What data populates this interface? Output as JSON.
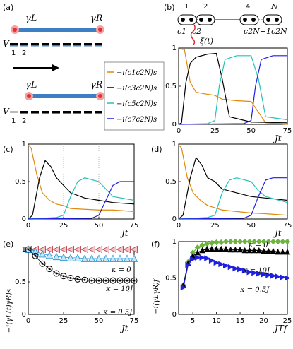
{
  "panels": {
    "a": {
      "label": "(a)",
      "gamma_L": "γL",
      "gamma_R": "γR",
      "V": "V",
      "site1": "1",
      "site2": "2"
    },
    "b": {
      "label": "(b)",
      "top_labels": [
        "1",
        "2",
        "4",
        "N"
      ],
      "bottom_labels": [
        "c1",
        "c2",
        "c2N−1c2N"
      ],
      "xi": "ξ(t)"
    },
    "c": {
      "label": "(c)"
    },
    "d": {
      "label": "(d)"
    },
    "e": {
      "label": "(e)",
      "ylabel": "−i⟨γL(t)γR⟩s",
      "xlabel": "Jt",
      "annotations": [
        "κ = 0",
        "κ = 10J",
        "κ = 0.5J"
      ]
    },
    "f": {
      "label": "(f)",
      "ylabel": "−i⟨γLγR⟩f",
      "xlabel": "JTf",
      "annotations": [
        "κ = 0",
        "κ = 10J",
        "κ = 0.5J"
      ]
    }
  },
  "legend": [
    {
      "text": "−i⟨c1c2N⟩s",
      "color": "#e08a0c"
    },
    {
      "text": "−i⟨c3c2N⟩s",
      "color": "#000000"
    },
    {
      "text": "−i⟨c5c2N⟩s",
      "color": "#22c3b8"
    },
    {
      "text": "−i⟨c7c2N⟩s",
      "color": "#1f1fe0"
    }
  ],
  "chart_data": [
    {
      "type": "line",
      "panel": "b",
      "xlabel": "Jt",
      "xlim": [
        0,
        75
      ],
      "ylim": [
        0,
        1
      ],
      "xticks": [
        "0",
        "25",
        "50",
        "75"
      ],
      "yticks": [
        "0",
        "0.5",
        "1"
      ],
      "series": [
        {
          "color": "#e08a0c",
          "x": [
            0,
            4,
            8,
            12,
            18,
            25,
            30,
            40,
            50,
            60,
            75
          ],
          "y": [
            0.99,
            0.98,
            0.55,
            0.42,
            0.4,
            0.38,
            0.33,
            0.31,
            0.3,
            0.02,
            0.0
          ]
        },
        {
          "color": "#000000",
          "x": [
            0,
            2,
            5,
            8,
            12,
            20,
            26,
            30,
            35,
            50,
            75
          ],
          "y": [
            0.0,
            0.02,
            0.55,
            0.8,
            0.88,
            0.92,
            0.93,
            0.6,
            0.1,
            0.03,
            0.02
          ]
        },
        {
          "color": "#22c3b8",
          "x": [
            0,
            20,
            25,
            28,
            32,
            40,
            50,
            55,
            60,
            75
          ],
          "y": [
            0.0,
            0.01,
            0.05,
            0.5,
            0.85,
            0.9,
            0.9,
            0.6,
            0.1,
            0.06
          ]
        },
        {
          "color": "#1f1fe0",
          "x": [
            0,
            45,
            50,
            53,
            57,
            65,
            75
          ],
          "y": [
            0.0,
            0.01,
            0.05,
            0.5,
            0.85,
            0.9,
            0.9
          ]
        }
      ]
    },
    {
      "type": "line",
      "panel": "c",
      "xlabel": "Jt",
      "xlim": [
        0,
        75
      ],
      "ylim": [
        0,
        1
      ],
      "xticks": [
        "0",
        "25",
        "50",
        "75"
      ],
      "yticks": [
        "0",
        "0.5",
        "1"
      ],
      "series": [
        {
          "color": "#e08a0c",
          "x": [
            0,
            2,
            6,
            10,
            15,
            20,
            25,
            30,
            40,
            50,
            60,
            75
          ],
          "y": [
            0.99,
            0.95,
            0.6,
            0.35,
            0.25,
            0.2,
            0.18,
            0.14,
            0.13,
            0.12,
            0.12,
            0.1
          ]
        },
        {
          "color": "#000000",
          "x": [
            0,
            3,
            8,
            12,
            16,
            20,
            25,
            30,
            40,
            50,
            60,
            75
          ],
          "y": [
            0.0,
            0.05,
            0.55,
            0.78,
            0.7,
            0.55,
            0.45,
            0.35,
            0.28,
            0.25,
            0.22,
            0.2
          ]
        },
        {
          "color": "#22c3b8",
          "x": [
            0,
            20,
            25,
            30,
            35,
            40,
            50,
            55,
            60,
            75
          ],
          "y": [
            0.0,
            0.02,
            0.05,
            0.3,
            0.5,
            0.55,
            0.5,
            0.4,
            0.3,
            0.25
          ]
        },
        {
          "color": "#1f1fe0",
          "x": [
            0,
            45,
            50,
            55,
            60,
            65,
            75
          ],
          "y": [
            0.0,
            0.01,
            0.05,
            0.25,
            0.45,
            0.5,
            0.5
          ]
        }
      ]
    },
    {
      "type": "line",
      "panel": "d",
      "xlabel": "Jt",
      "xlim": [
        0,
        75
      ],
      "ylim": [
        0,
        1
      ],
      "xticks": [
        "0",
        "25",
        "50",
        "75"
      ],
      "yticks": [
        "0",
        "0.5",
        "1"
      ],
      "series": [
        {
          "color": "#e08a0c",
          "x": [
            0,
            2,
            6,
            10,
            15,
            20,
            25,
            30,
            40,
            50,
            60,
            75
          ],
          "y": [
            0.99,
            0.95,
            0.55,
            0.35,
            0.25,
            0.18,
            0.15,
            0.12,
            0.1,
            0.08,
            0.07,
            0.05
          ]
        },
        {
          "color": "#000000",
          "x": [
            0,
            3,
            8,
            12,
            16,
            20,
            25,
            30,
            40,
            50,
            60,
            75
          ],
          "y": [
            0.0,
            0.05,
            0.55,
            0.82,
            0.72,
            0.55,
            0.5,
            0.4,
            0.35,
            0.3,
            0.28,
            0.25
          ]
        },
        {
          "color": "#22c3b8",
          "x": [
            0,
            20,
            25,
            30,
            35,
            40,
            50,
            55,
            60,
            75
          ],
          "y": [
            0.0,
            0.02,
            0.05,
            0.35,
            0.52,
            0.55,
            0.5,
            0.38,
            0.3,
            0.22
          ]
        },
        {
          "color": "#1f1fe0",
          "x": [
            0,
            45,
            50,
            55,
            60,
            65,
            75
          ],
          "y": [
            0.0,
            0.01,
            0.05,
            0.3,
            0.52,
            0.55,
            0.55
          ]
        }
      ]
    },
    {
      "type": "scatter",
      "panel": "e",
      "xlabel": "Jt",
      "xlim": [
        0,
        75
      ],
      "ylim": [
        0,
        1
      ],
      "xticks": [
        "0",
        "25",
        "50",
        "75"
      ],
      "yticks": [
        "0",
        "0.5",
        "1"
      ],
      "series": [
        {
          "name": "κ = 0",
          "color": "#b5474f",
          "marker": "triangle-left",
          "x": [
            0,
            5,
            10,
            15,
            20,
            25,
            30,
            35,
            40,
            45,
            50,
            55,
            60,
            65,
            70,
            75
          ],
          "y": [
            1,
            1,
            1,
            1,
            1,
            1,
            1,
            1,
            1,
            1,
            1,
            1,
            1,
            1,
            1,
            1
          ]
        },
        {
          "name": "κ = 10J",
          "color": "#2e9bd6",
          "marker": "triangle-up",
          "x": [
            0,
            5,
            10,
            15,
            20,
            25,
            30,
            35,
            40,
            45,
            50,
            55,
            60,
            65,
            70,
            75
          ],
          "y": [
            1,
            0.97,
            0.93,
            0.91,
            0.89,
            0.88,
            0.87,
            0.87,
            0.86,
            0.86,
            0.86,
            0.86,
            0.86,
            0.86,
            0.86,
            0.86
          ]
        },
        {
          "name": "κ = 0.5J",
          "color": "#000000",
          "marker": "circle",
          "x": [
            0,
            5,
            10,
            15,
            20,
            25,
            30,
            35,
            40,
            45,
            50,
            55,
            60,
            65,
            70,
            75
          ],
          "y": [
            1,
            0.9,
            0.78,
            0.7,
            0.63,
            0.59,
            0.56,
            0.54,
            0.53,
            0.52,
            0.52,
            0.52,
            0.52,
            0.52,
            0.52,
            0.52
          ]
        }
      ]
    },
    {
      "type": "line",
      "panel": "f",
      "xlabel": "JTf",
      "xlim": [
        2,
        25
      ],
      "ylim": [
        0,
        1
      ],
      "xticks": [
        "5",
        "10",
        "15",
        "20",
        "25"
      ],
      "yticks": [
        "0",
        "0.5",
        "1"
      ],
      "series": [
        {
          "name": "κ = 0",
          "color": "#6db33f",
          "marker": "diamond",
          "x": [
            3,
            4,
            5,
            6,
            7,
            8,
            9,
            10,
            11,
            12,
            13,
            14,
            15,
            16,
            17,
            18,
            19,
            20,
            21,
            22,
            23,
            24,
            25
          ],
          "y": [
            0.4,
            0.72,
            0.85,
            0.92,
            0.95,
            0.97,
            0.98,
            0.99,
            0.99,
            1,
            1,
            1,
            1,
            1,
            1,
            1,
            1,
            1,
            1,
            1,
            1,
            1,
            1
          ]
        },
        {
          "name": "κ = 10J",
          "color": "#000000",
          "marker": "triangle-up",
          "x": [
            3,
            4,
            5,
            6,
            7,
            8,
            9,
            10,
            11,
            12,
            13,
            14,
            15,
            16,
            17,
            18,
            19,
            20,
            21,
            22,
            23,
            24,
            25
          ],
          "y": [
            0.4,
            0.7,
            0.8,
            0.85,
            0.88,
            0.9,
            0.9,
            0.9,
            0.9,
            0.9,
            0.89,
            0.89,
            0.89,
            0.88,
            0.88,
            0.88,
            0.88,
            0.87,
            0.87,
            0.87,
            0.86,
            0.86,
            0.86
          ]
        },
        {
          "name": "κ = 0.5J",
          "color": "#1f1fe0",
          "marker": "triangle-right",
          "x": [
            3,
            4,
            5,
            6,
            7,
            8,
            9,
            10,
            11,
            12,
            13,
            14,
            15,
            16,
            17,
            18,
            19,
            20,
            21,
            22,
            23,
            24,
            25
          ],
          "y": [
            0.37,
            0.68,
            0.76,
            0.78,
            0.78,
            0.77,
            0.74,
            0.71,
            0.69,
            0.67,
            0.65,
            0.63,
            0.62,
            0.6,
            0.58,
            0.57,
            0.56,
            0.55,
            0.54,
            0.53,
            0.52,
            0.51,
            0.5
          ]
        }
      ]
    }
  ]
}
